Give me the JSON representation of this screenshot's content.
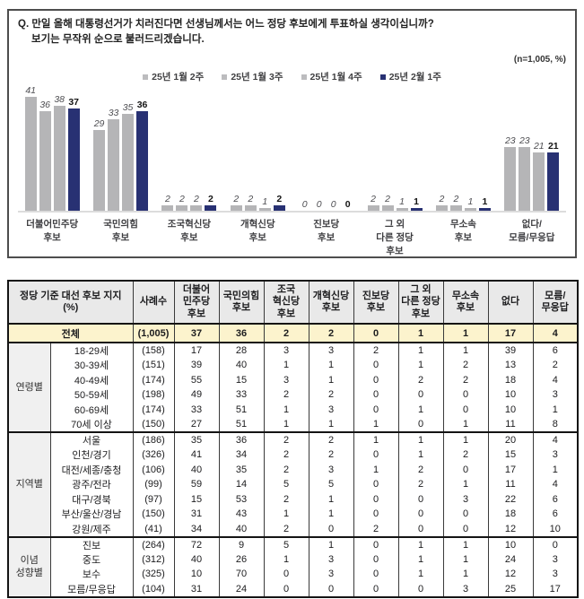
{
  "question": {
    "line1": "Q. 만일 올해 대통령선거가 치러진다면 선생님께서는 어느 정당 후보에게 투표하실 생각이십니까?",
    "line2": "보기는 무작위 순으로 불러드리겠습니다.",
    "sample_note": "(n=1,005, %)"
  },
  "colors": {
    "gray_bar": "#b5b5b7",
    "navy_bar": "#283173",
    "legend_gray": "#bcbcbe",
    "total_row_bg": "#fcf3cd",
    "header_bg": "#e9e9e9"
  },
  "chart_data": {
    "type": "bar",
    "title": "정당 기준 대선 후보 지지",
    "unit": "%",
    "legend_position": "top",
    "ylim": [
      0,
      45
    ],
    "grid": false,
    "categories": [
      "더불어민주당\n후보",
      "국민의힘\n후보",
      "조국혁신당\n후보",
      "개혁신당\n후보",
      "진보당\n후보",
      "그 외\n다른 정당\n후보",
      "무소속\n후보",
      "없다/\n모름/무응답"
    ],
    "series": [
      {
        "name": "25년 1월 2주",
        "color": "#b5b5b7",
        "values": [
          41,
          29,
          2,
          2,
          0,
          2,
          2,
          23
        ]
      },
      {
        "name": "25년 1월 3주",
        "color": "#b5b5b7",
        "values": [
          36,
          33,
          2,
          2,
          0,
          2,
          2,
          23
        ]
      },
      {
        "name": "25년 1월 4주",
        "color": "#b5b5b7",
        "values": [
          38,
          35,
          2,
          1,
          0,
          1,
          1,
          21
        ]
      },
      {
        "name": "25년 2월 1주",
        "color": "#283173",
        "values": [
          37,
          36,
          2,
          2,
          0,
          1,
          1,
          21
        ]
      }
    ]
  },
  "table": {
    "header": [
      "정당 기준 대선 후보 지지\n(%)",
      "사례수",
      "더불어\n민주당\n후보",
      "국민의힘\n후보",
      "조국\n혁신당\n후보",
      "개혁신당\n후보",
      "진보당\n후보",
      "그 외\n다른 정당\n후보",
      "무소속\n후보",
      "없다",
      "모름/\n무응답"
    ],
    "total_row": {
      "label": "전체",
      "n": "(1,005)",
      "values": [
        37,
        36,
        2,
        2,
        0,
        1,
        1,
        17,
        4
      ]
    },
    "sections": [
      {
        "group": "연령별",
        "rows": [
          {
            "label": "18-29세",
            "n": "(158)",
            "values": [
              17,
              28,
              3,
              3,
              2,
              1,
              1,
              39,
              6
            ]
          },
          {
            "label": "30-39세",
            "n": "(151)",
            "values": [
              39,
              40,
              1,
              1,
              0,
              1,
              2,
              13,
              2
            ]
          },
          {
            "label": "40-49세",
            "n": "(174)",
            "values": [
              55,
              15,
              3,
              1,
              0,
              2,
              2,
              18,
              4
            ]
          },
          {
            "label": "50-59세",
            "n": "(198)",
            "values": [
              49,
              33,
              2,
              2,
              0,
              0,
              0,
              10,
              3
            ]
          },
          {
            "label": "60-69세",
            "n": "(174)",
            "values": [
              33,
              51,
              1,
              3,
              0,
              1,
              0,
              10,
              1
            ]
          },
          {
            "label": "70세 이상",
            "n": "(150)",
            "values": [
              27,
              51,
              1,
              1,
              1,
              0,
              1,
              11,
              8
            ]
          }
        ]
      },
      {
        "group": "지역별",
        "rows": [
          {
            "label": "서울",
            "n": "(186)",
            "values": [
              35,
              36,
              2,
              2,
              1,
              1,
              1,
              20,
              4
            ]
          },
          {
            "label": "인천/경기",
            "n": "(326)",
            "values": [
              41,
              34,
              2,
              2,
              0,
              1,
              2,
              15,
              3
            ]
          },
          {
            "label": "대전/세종/충청",
            "n": "(106)",
            "values": [
              40,
              35,
              2,
              3,
              1,
              2,
              0,
              17,
              1
            ]
          },
          {
            "label": "광주/전라",
            "n": "(99)",
            "values": [
              59,
              14,
              5,
              5,
              0,
              2,
              1,
              11,
              4
            ]
          },
          {
            "label": "대구/경북",
            "n": "(97)",
            "values": [
              15,
              53,
              2,
              1,
              0,
              0,
              3,
              22,
              6
            ]
          },
          {
            "label": "부산/울산/경남",
            "n": "(150)",
            "values": [
              31,
              43,
              1,
              1,
              0,
              0,
              0,
              18,
              6
            ]
          },
          {
            "label": "강원/제주",
            "n": "(41)",
            "values": [
              34,
              40,
              2,
              0,
              2,
              0,
              0,
              12,
              10
            ]
          }
        ]
      },
      {
        "group": "이념\n성향별",
        "rows": [
          {
            "label": "진보",
            "n": "(264)",
            "values": [
              72,
              9,
              5,
              1,
              0,
              1,
              1,
              10,
              0
            ]
          },
          {
            "label": "중도",
            "n": "(312)",
            "values": [
              40,
              26,
              1,
              3,
              0,
              1,
              1,
              24,
              3
            ]
          },
          {
            "label": "보수",
            "n": "(325)",
            "values": [
              10,
              70,
              0,
              3,
              0,
              1,
              1,
              12,
              3
            ]
          },
          {
            "label": "모름/무응답",
            "n": "(104)",
            "values": [
              31,
              24,
              0,
              0,
              0,
              0,
              3,
              25,
              17
            ]
          }
        ]
      }
    ]
  }
}
